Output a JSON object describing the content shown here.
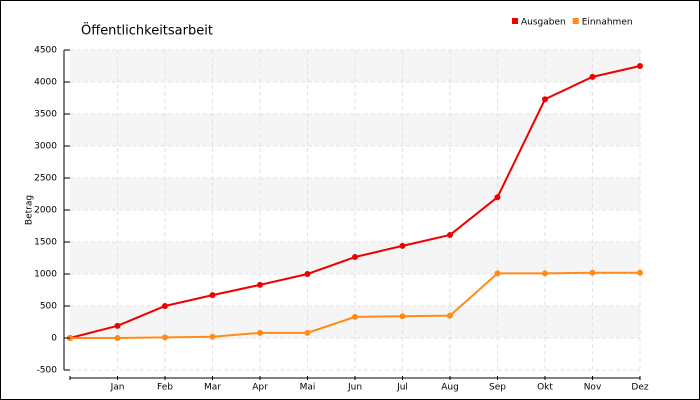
{
  "chart_data": {
    "type": "line",
    "title": "Öffentlichkeitsarbeit",
    "y_label": "Betrag",
    "categories": [
      null,
      "Jan",
      "Feb",
      "Mar",
      "Apr",
      "Mai",
      "Jun",
      "Jul",
      "Aug",
      "Sep",
      "Okt",
      "Nov",
      "Dez"
    ],
    "series": [
      {
        "name": "Ausgaben",
        "color": "#ee0000",
        "values": [
          0,
          190,
          500,
          670,
          830,
          1000,
          1265,
          1440,
          1610,
          2200,
          3730,
          4080,
          4250
        ]
      },
      {
        "name": "Einnahmen",
        "color": "#ff8c1a",
        "values": [
          0,
          0,
          10,
          20,
          80,
          80,
          330,
          340,
          350,
          1010,
          1010,
          1020,
          1020
        ]
      }
    ],
    "ylim": [
      -500,
      4500
    ],
    "yticks": [
      -500,
      0,
      500,
      1000,
      1500,
      2000,
      2500,
      3000,
      3500,
      4000,
      4500
    ],
    "grid": true,
    "legend": "top-right"
  }
}
